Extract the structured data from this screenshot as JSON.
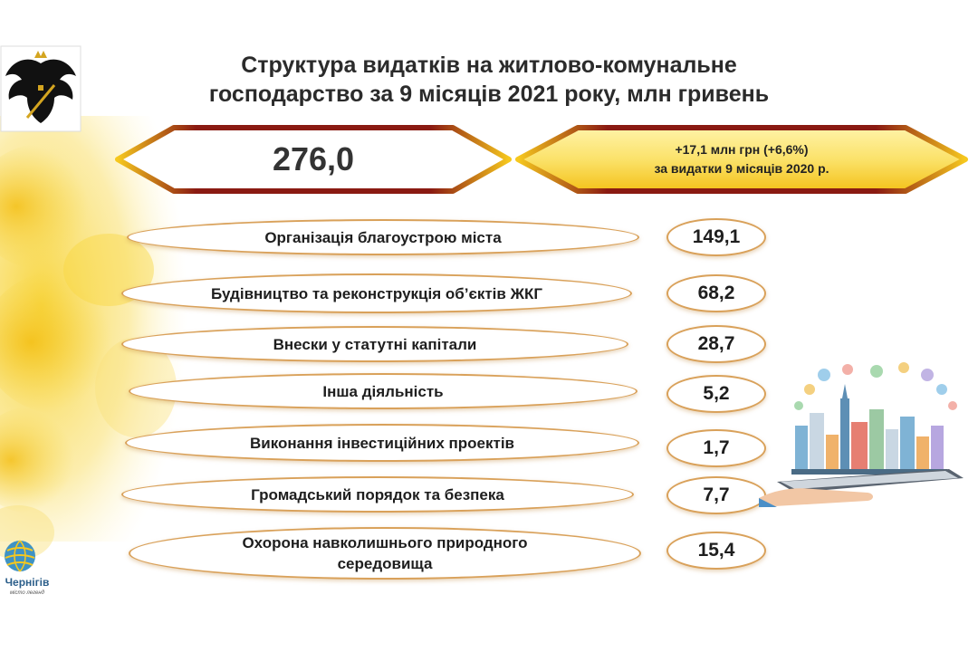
{
  "title": {
    "line1": "Структура видатків на житлово-комунальне",
    "line2": "господарство за 9 місяців 2021 року, млн гривень"
  },
  "total": {
    "value": "276,0"
  },
  "change": {
    "line1": "+17,1 млн грн (+6,6%)",
    "line2": "за видатки  9 місяців 2020 р."
  },
  "items": [
    {
      "label": "Організація благоустрою міста",
      "value": "149,1"
    },
    {
      "label": "Будівництво та реконструкція об’єктів ЖКГ",
      "value": "68,2"
    },
    {
      "label": "Внески у статутні капітали",
      "value": "28,7"
    },
    {
      "label": "Інша діяльність",
      "value": "5,2"
    },
    {
      "label": "Виконання інвестиційних проектів",
      "value": "1,7"
    },
    {
      "label": "Громадський порядок та безпека",
      "value": "7,7"
    },
    {
      "label_line1": "Охорона навколишнього природного",
      "label_line2": "середовища",
      "value": "15,4"
    }
  ],
  "logo": {
    "name": "Чернігів",
    "tagline": "місто легенд"
  },
  "icons": {
    "crest": "eagle-crest-icon",
    "city": "smart-city-hand-icon",
    "logo": "chernihiv-globe-logo-icon"
  },
  "colors": {
    "gold": "#f6c81e",
    "dark_red": "#8a1a12",
    "border": "#d9a15a"
  }
}
